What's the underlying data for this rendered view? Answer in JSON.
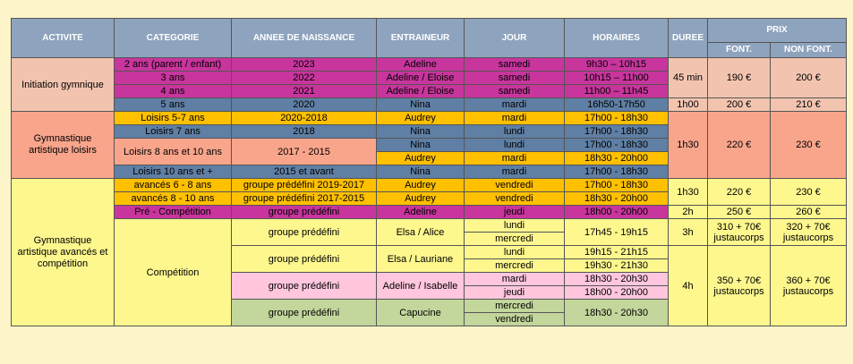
{
  "header": {
    "activite": "ACTIVITE",
    "categorie": "CATEGORIE",
    "annee": "ANNEE DE NAISSANCE",
    "entraineur": "ENTRAINEUR",
    "jour": "JOUR",
    "horaires": "HORAIRES",
    "duree": "DUREE",
    "prix": "PRIX",
    "font": "FONT.",
    "non_font": "NON FONT."
  },
  "rows": [
    [
      "Initiation gymnique",
      "2 ans (parent / enfant)",
      "2023",
      "Adeline",
      "samedi",
      "9h30 – 10h15",
      "45 min",
      "190 €",
      "200 €"
    ],
    [
      "3 ans",
      "2022",
      "Adeline / Eloise",
      "samedi",
      "10h15 – 11h00"
    ],
    [
      "4 ans",
      "2021",
      "Adeline / Eloise",
      "samedi",
      "11h00 – 11h45"
    ],
    [
      "5 ans",
      "2020",
      "Nina",
      "mardi",
      "16h50-17h50",
      "1h00",
      "200 €",
      "210 €"
    ],
    [
      "Gymnastique artistique loisirs",
      "Loisirs 5-7 ans",
      "2020-2018",
      "Audrey",
      "mardi",
      "17h00 - 18h30",
      "1h30",
      "220 €",
      "230 €"
    ],
    [
      "Loisirs 7 ans",
      "2018",
      "Nina",
      "lundi",
      "17h00 - 18h30"
    ],
    [
      "Loisirs 8 ans et 10 ans",
      "2017 - 2015",
      "Nina",
      "lundi",
      "17h00 - 18h30"
    ],
    [
      "Audrey",
      "mardi",
      "18h30 - 20h00"
    ],
    [
      "Loisirs 10 ans et +",
      "2015 et avant",
      "Nina",
      "mardi",
      "17h00 - 18h30"
    ],
    [
      "Gymnastique artistique avancés et compétition",
      "avancés 6 - 8 ans",
      "groupe prédéfini 2019-2017",
      "Audrey",
      "vendredi",
      "17h00 - 18h30",
      "1h30",
      "220 €",
      "230 €"
    ],
    [
      "avancés 8 - 10 ans",
      "groupe prédéfini 2017-2015",
      "Audrey",
      "vendredi",
      "18h30 - 20h00"
    ],
    [
      "Pré - Compétition",
      "groupe prédéfini",
      "Adeline",
      "jeudi",
      "18h00 - 20h00",
      "2h",
      "250 €",
      "260 €"
    ],
    [
      "Compétition",
      "groupe prédéfini",
      "Elsa / Alice",
      "lundi",
      "17h45 - 19h15",
      "3h",
      "310 + 70€ justaucorps",
      "320 + 70€ justaucorps"
    ],
    [
      "mercredi"
    ],
    [
      "groupe prédéfini",
      "Elsa / Lauriane",
      "lundi",
      "19h15 - 21h15",
      "4h",
      "350 + 70€ justaucorps",
      "360 + 70€ justaucorps"
    ],
    [
      "mercredi",
      "19h30 - 21h30"
    ],
    [
      "groupe prédéfini",
      "Adeline / Isabelle",
      "mardi",
      "18h30 - 20h30"
    ],
    [
      "jeudi",
      "18h00 - 20h00"
    ],
    [
      "groupe prédéfini",
      "Capucine",
      "mercredi",
      "18h30 - 20h30"
    ],
    [
      "vendredi"
    ]
  ]
}
